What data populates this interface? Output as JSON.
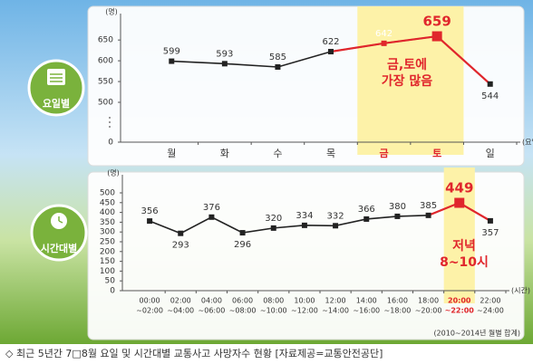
{
  "caption": "◇ 최근 5년간 7□8월 요일 및 시간대별 교통사고 사망자수 현황 [자료제공=교통안전공단]",
  "chart_data": [
    {
      "type": "line",
      "badge": "요일별",
      "y_unit": "(명)",
      "x_unit": "(요일)",
      "categories": [
        "월",
        "화",
        "수",
        "목",
        "금",
        "토",
        "일"
      ],
      "values": [
        599,
        593,
        585,
        622,
        642,
        659,
        544
      ],
      "ylim": [
        0,
        670
      ],
      "ybreak": [
        0,
        500
      ],
      "yticks": [
        0,
        500,
        550,
        600,
        650
      ],
      "color": "#222222",
      "highlight": [
        4,
        5
      ],
      "highlight_color": "#e0262c",
      "band_color": "#fdf2a8",
      "annotation": [
        "금,토에",
        "가장 많음"
      ]
    },
    {
      "type": "line",
      "badge": "시간대별",
      "y_unit": "(명)",
      "x_unit": "(시간)",
      "categories": [
        [
          "00:00",
          "~02:00"
        ],
        [
          "02:00",
          "~04:00"
        ],
        [
          "04:00",
          "~06:00"
        ],
        [
          "06:00",
          "~08:00"
        ],
        [
          "08:00",
          "~10:00"
        ],
        [
          "10:00",
          "~12:00"
        ],
        [
          "12:00",
          "~14:00"
        ],
        [
          "14:00",
          "~16:00"
        ],
        [
          "16:00",
          "~18:00"
        ],
        [
          "18:00",
          "~20:00"
        ],
        [
          "20:00",
          "~22:00"
        ],
        [
          "22:00",
          "~24:00"
        ]
      ],
      "values": [
        356,
        293,
        376,
        296,
        320,
        334,
        332,
        366,
        380,
        385,
        449,
        357
      ],
      "ylim": [
        0,
        500
      ],
      "yticks": [
        0,
        50,
        100,
        150,
        200,
        250,
        300,
        350,
        400,
        450,
        500
      ],
      "color": "#222222",
      "highlight": [
        10
      ],
      "highlight_color": "#e0262c",
      "band_color": "#fdf2a8",
      "annotation": [
        "저녁",
        "8~10시"
      ],
      "note": "(2010~2014년 월별 합계)"
    }
  ]
}
